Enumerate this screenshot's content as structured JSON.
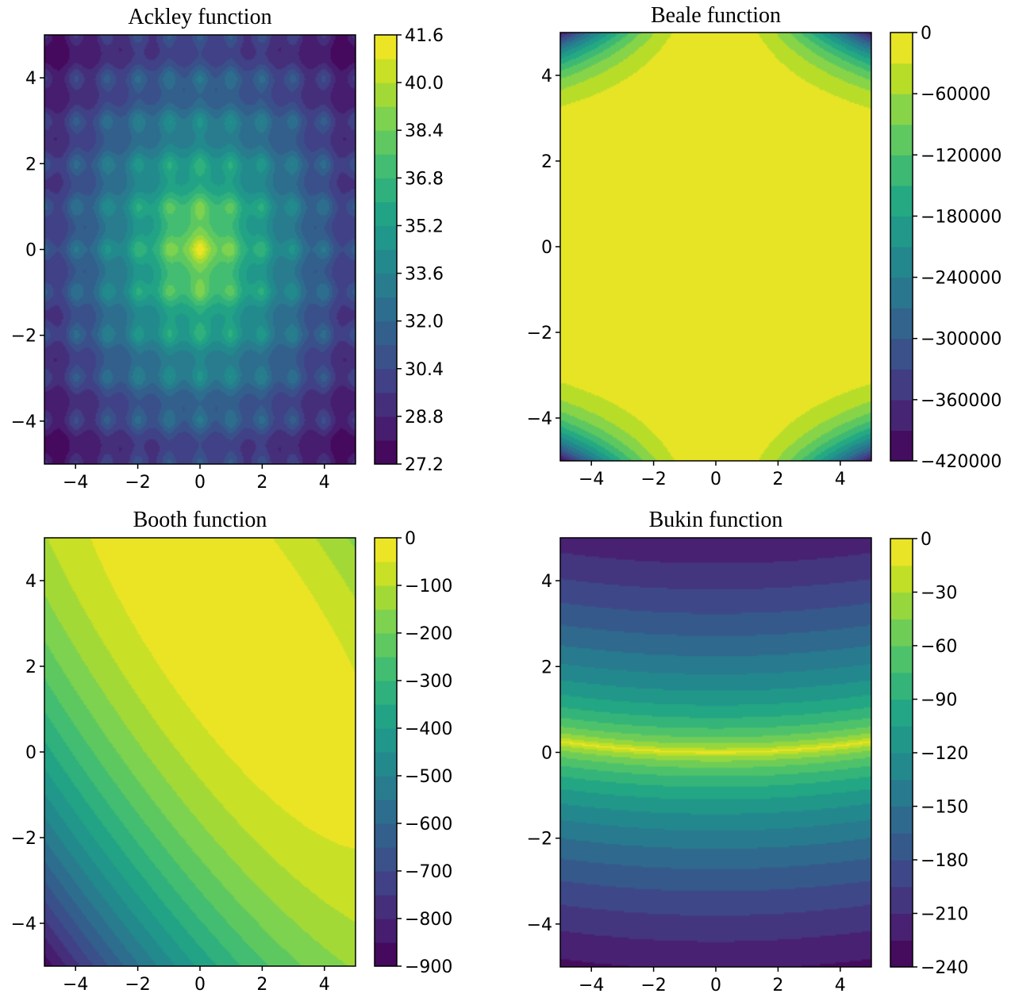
{
  "chart_data": [
    {
      "type": "heatmap",
      "function": "ackley",
      "title": "Ackley function",
      "xlim": [
        -5,
        5
      ],
      "ylim": [
        -5,
        5
      ],
      "xticks": [
        -4,
        -2,
        0,
        2,
        4
      ],
      "yticks": [
        -4,
        -2,
        0,
        2,
        4
      ],
      "xtick_labels": [
        "−4",
        "−2",
        "0",
        "2",
        "4"
      ],
      "ytick_labels": [
        "−4",
        "−2",
        "0",
        "2",
        "4"
      ],
      "colorbar": {
        "range": [
          27.2,
          41.6
        ],
        "ticks": [
          41.6,
          40.0,
          38.4,
          36.8,
          35.2,
          33.6,
          32.0,
          30.4,
          28.8,
          27.2
        ],
        "tick_labels": [
          "41.6",
          "40.0",
          "38.4",
          "36.8",
          "35.2",
          "33.6",
          "32.0",
          "30.4",
          "28.8",
          "27.2"
        ],
        "levels": 18
      },
      "colormap": "viridis",
      "grid": false
    },
    {
      "type": "heatmap",
      "function": "beale",
      "title": "Beale function",
      "xlim": [
        -5,
        5
      ],
      "ylim": [
        -5,
        5
      ],
      "xticks": [
        -4,
        -2,
        0,
        2,
        4
      ],
      "yticks": [
        -4,
        -2,
        0,
        2,
        4
      ],
      "xtick_labels": [
        "−4",
        "−2",
        "0",
        "2",
        "4"
      ],
      "ytick_labels": [
        "−4",
        "−2",
        "0",
        "2",
        "4"
      ],
      "colorbar": {
        "range": [
          -420000,
          0
        ],
        "ticks": [
          0,
          -60000,
          -120000,
          -180000,
          -240000,
          -300000,
          -360000,
          -420000
        ],
        "tick_labels": [
          "0",
          "−60000",
          "−120000",
          "−180000",
          "−240000",
          "−300000",
          "−360000",
          "−420000"
        ],
        "levels": 14
      },
      "colormap": "viridis",
      "grid": false
    },
    {
      "type": "heatmap",
      "function": "booth",
      "title": "Booth function",
      "xlim": [
        -5,
        5
      ],
      "ylim": [
        -5,
        5
      ],
      "xticks": [
        -4,
        -2,
        0,
        2,
        4
      ],
      "yticks": [
        -4,
        -2,
        0,
        2,
        4
      ],
      "xtick_labels": [
        "−4",
        "−2",
        "0",
        "2",
        "4"
      ],
      "ytick_labels": [
        "−4",
        "−2",
        "0",
        "2",
        "4"
      ],
      "colorbar": {
        "range": [
          -900,
          0
        ],
        "ticks": [
          0,
          -100,
          -200,
          -300,
          -400,
          -500,
          -600,
          -700,
          -800,
          -900
        ],
        "tick_labels": [
          "0",
          "−100",
          "−200",
          "−300",
          "−400",
          "−500",
          "−600",
          "−700",
          "−800",
          "−900"
        ],
        "levels": 18
      },
      "colormap": "viridis",
      "grid": false
    },
    {
      "type": "heatmap",
      "function": "bukin",
      "title": "Bukin function",
      "xlim": [
        -5,
        5
      ],
      "ylim": [
        -5,
        5
      ],
      "xticks": [
        -4,
        -2,
        0,
        2,
        4
      ],
      "yticks": [
        -4,
        -2,
        0,
        2,
        4
      ],
      "xtick_labels": [
        "−4",
        "−2",
        "0",
        "2",
        "4"
      ],
      "ytick_labels": [
        "−4",
        "−2",
        "0",
        "2",
        "4"
      ],
      "colorbar": {
        "range": [
          -240,
          0
        ],
        "ticks": [
          0,
          -30,
          -60,
          -90,
          -120,
          -150,
          -180,
          -210,
          -240
        ],
        "tick_labels": [
          "0",
          "−30",
          "−60",
          "−90",
          "−120",
          "−150",
          "−180",
          "−210",
          "−240"
        ],
        "levels": 16
      },
      "colormap": "viridis",
      "grid": false
    }
  ]
}
